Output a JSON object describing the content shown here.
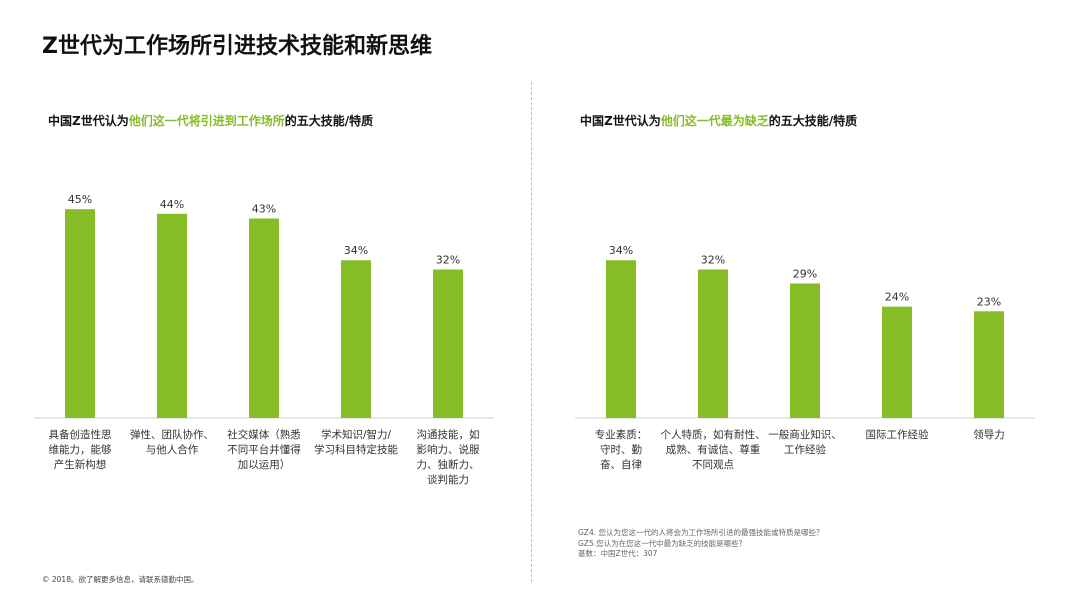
{
  "page": {
    "title": "Z世代为工作场所引进技术技能和新思维"
  },
  "chart_data": [
    {
      "type": "bar",
      "title_parts": [
        "中国Z世代认为",
        "他们这一代将引进到工作场所",
        "的五大技能/特质"
      ],
      "categories": [
        [
          "具备创造性思",
          "维能力，能够",
          "产生新构想"
        ],
        [
          "弹性、团队协作、",
          "与他人合作"
        ],
        [
          "社交媒体（熟悉",
          "不同平台并懂得",
          "加以运用）"
        ],
        [
          "学术知识/智力/",
          "学习科目特定技能"
        ],
        [
          "沟通技能，如",
          "影响力、说服",
          "力、独断力、",
          "谈判能力"
        ]
      ],
      "values": [
        45,
        44,
        43,
        34,
        32
      ],
      "value_labels": [
        "45%",
        "44%",
        "43%",
        "34%",
        "32%"
      ],
      "unit": "%",
      "color": "#86bc25",
      "ylim": [
        0,
        50
      ],
      "grid": false
    },
    {
      "type": "bar",
      "title_parts": [
        "中国Z世代认为",
        "他们这一代最为缺乏",
        "的五大技能/特质"
      ],
      "categories": [
        [
          "专业素质：",
          "守时、勤",
          "奋、自律"
        ],
        [
          "个人特质，如有耐性、",
          "成熟、有诚信、尊重",
          "不同观点"
        ],
        [
          "一般商业知识、",
          "工作经验"
        ],
        [
          "国际工作经验"
        ],
        [
          "领导力"
        ]
      ],
      "values": [
        34,
        32,
        29,
        24,
        23
      ],
      "value_labels": [
        "34%",
        "32%",
        "29%",
        "24%",
        "23%"
      ],
      "unit": "%",
      "color": "#86bc25",
      "ylim": [
        0,
        50
      ],
      "grid": false
    }
  ],
  "footnotes": [
    "GZ4. 您认为您这一代的人将会为工作场所引进的最强技能或特质是哪些？",
    "GZ5.您认为在您这一代中最为缺乏的技能是哪些？",
    "基数：中国Z世代：307"
  ],
  "copyright": "© 2018。欲了解更多信息，请联系德勤中国。",
  "colors": {
    "accent": "#86bc25",
    "axis": "#d0d0d0",
    "text": "#222222"
  }
}
